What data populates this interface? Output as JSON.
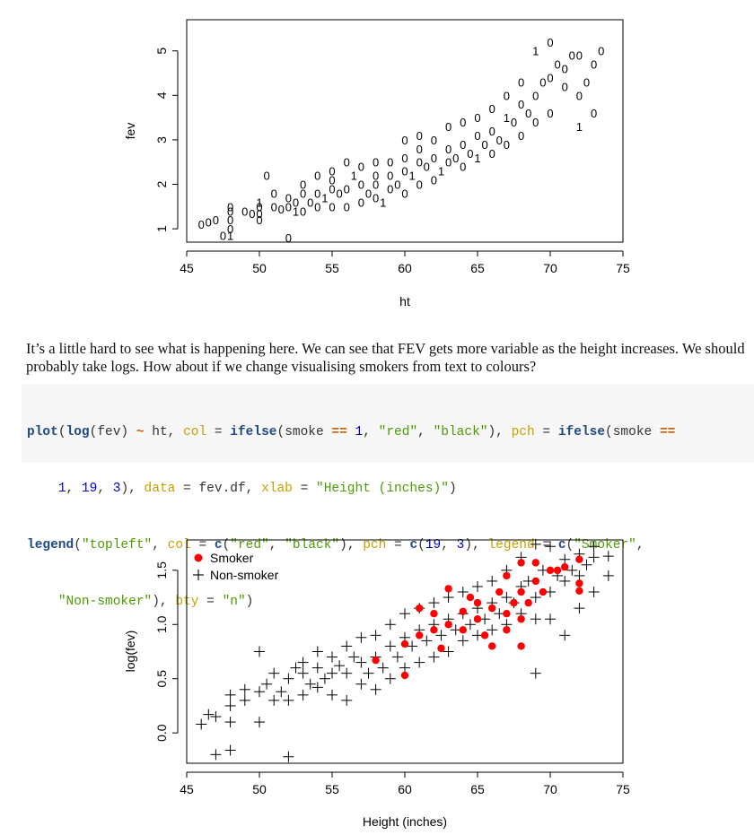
{
  "plot1": {
    "xlabel": "ht",
    "ylabel": "fev",
    "xticks": [
      "45",
      "50",
      "55",
      "60",
      "65",
      "70",
      "75"
    ],
    "yticks": [
      "1",
      "2",
      "3",
      "4",
      "5"
    ]
  },
  "prose": {
    "text": "It’s a little hard to see what is happening here. We can see that FEV gets more variable as the height increases. We should probably take logs. How about if we change visualising smokers from text to colours?"
  },
  "code": {
    "lines": [
      "plot(log(fev) ~ ht, col = ifelse(smoke == 1, \"red\", \"black\"), pch = ifelse(smoke ==",
      "    1, 19, 3), data = fev.df, xlab = \"Height (inches)\")",
      "legend(\"topleft\", col = c(\"red\", \"black\"), pch = c(19, 3), legend = c(\"Smoker\",",
      "    \"Non-smoker\"), bty = \"n\")"
    ]
  },
  "plot2": {
    "xlabel": "Height (inches)",
    "ylabel": "log(fev)",
    "xticks": [
      "45",
      "50",
      "55",
      "60",
      "65",
      "70",
      "75"
    ],
    "yticks": [
      "0.0",
      "0.5",
      "1.0",
      "1.5"
    ],
    "legend": [
      {
        "label": "Smoker",
        "color": "#ff0000",
        "marker": "filled-circle"
      },
      {
        "label": "Non-smoker",
        "color": "#000000",
        "marker": "plus"
      }
    ]
  },
  "chart_data": [
    {
      "type": "scatter",
      "xlabel": "ht",
      "ylabel": "fev",
      "xlim": [
        45,
        75
      ],
      "ylim": [
        0.7,
        5.7
      ],
      "grid": false,
      "marker": "text: 0 = non-smoker, 1 = smoker",
      "series": [
        {
          "points": [
            [
              46,
              1.1
            ],
            [
              46.5,
              1.15
            ],
            [
              47,
              1.2
            ],
            [
              47.5,
              0.85
            ],
            [
              48,
              0.85
            ],
            [
              48,
              1.0
            ],
            [
              48,
              1.2
            ],
            [
              48,
              1.4
            ],
            [
              48,
              1.5
            ],
            [
              49,
              1.4
            ],
            [
              49.5,
              1.35
            ],
            [
              50,
              1.35
            ],
            [
              50,
              1.5
            ],
            [
              50,
              1.6
            ],
            [
              50,
              1.2
            ],
            [
              50.5,
              2.2
            ],
            [
              51,
              1.5
            ],
            [
              51,
              1.8
            ],
            [
              51.5,
              1.45
            ],
            [
              52,
              0.8
            ],
            [
              52,
              1.5
            ],
            [
              52,
              1.7
            ],
            [
              52.5,
              1.4
            ],
            [
              52.5,
              1.6
            ],
            [
              53,
              1.4
            ],
            [
              53,
              1.8
            ],
            [
              53,
              2.0
            ],
            [
              53.5,
              1.6
            ],
            [
              54,
              1.5
            ],
            [
              54,
              1.8
            ],
            [
              54,
              2.2
            ],
            [
              54.5,
              1.7
            ],
            [
              55,
              1.5
            ],
            [
              55,
              1.9
            ],
            [
              55,
              2.1
            ],
            [
              55,
              2.3
            ],
            [
              55.5,
              1.8
            ],
            [
              56,
              1.5
            ],
            [
              56,
              1.9
            ],
            [
              56,
              2.5
            ],
            [
              56.5,
              2.2
            ],
            [
              57,
              1.6
            ],
            [
              57,
              2.0
            ],
            [
              57,
              2.4
            ],
            [
              57.5,
              1.8
            ],
            [
              58,
              1.7
            ],
            [
              58,
              2.0
            ],
            [
              58,
              2.2
            ],
            [
              58,
              2.5
            ],
            [
              58.5,
              1.6
            ],
            [
              59,
              1.9
            ],
            [
              59,
              2.2
            ],
            [
              59,
              2.5
            ],
            [
              59.5,
              2.0
            ],
            [
              60,
              1.8
            ],
            [
              60,
              2.3
            ],
            [
              60,
              2.6
            ],
            [
              60,
              3.0
            ],
            [
              60.5,
              2.2
            ],
            [
              61,
              2.0
            ],
            [
              61,
              2.5
            ],
            [
              61,
              2.8
            ],
            [
              61,
              3.1
            ],
            [
              61.5,
              2.4
            ],
            [
              62,
              2.1
            ],
            [
              62,
              2.6
            ],
            [
              62,
              3.0
            ],
            [
              62.5,
              2.3
            ],
            [
              63,
              2.5
            ],
            [
              63,
              2.8
            ],
            [
              63,
              3.3
            ],
            [
              63.5,
              2.6
            ],
            [
              64,
              2.4
            ],
            [
              64,
              2.9
            ],
            [
              64,
              3.4
            ],
            [
              64.5,
              2.7
            ],
            [
              65,
              2.6
            ],
            [
              65,
              3.1
            ],
            [
              65,
              3.5
            ],
            [
              65.5,
              2.9
            ],
            [
              66,
              2.7
            ],
            [
              66,
              3.2
            ],
            [
              66,
              3.7
            ],
            [
              66.5,
              3.0
            ],
            [
              67,
              2.9
            ],
            [
              67,
              3.5
            ],
            [
              67,
              4.0
            ],
            [
              67.5,
              3.4
            ],
            [
              68,
              3.1
            ],
            [
              68,
              3.8
            ],
            [
              68,
              4.3
            ],
            [
              68.5,
              3.6
            ],
            [
              69,
              3.4
            ],
            [
              69,
              4.0
            ],
            [
              69,
              5.0
            ],
            [
              69.5,
              4.3
            ],
            [
              70,
              3.6
            ],
            [
              70,
              4.4
            ],
            [
              70,
              5.2
            ],
            [
              70.5,
              4.7
            ],
            [
              71,
              4.2
            ],
            [
              71,
              4.6
            ],
            [
              71.5,
              4.9
            ],
            [
              72,
              3.3
            ],
            [
              72,
              4.0
            ],
            [
              72,
              4.9
            ],
            [
              72.5,
              4.3
            ],
            [
              73,
              3.6
            ],
            [
              73,
              4.7
            ],
            [
              73.5,
              5.0
            ]
          ]
        }
      ]
    },
    {
      "type": "scatter",
      "xlabel": "Height (inches)",
      "ylabel": "log(fev)",
      "xlim": [
        45,
        75
      ],
      "ylim": [
        -0.28,
        1.78
      ],
      "grid": false,
      "legend_position": "top-left",
      "series": [
        {
          "name": "Smoker",
          "color": "#ff0000",
          "marker": "filled-circle",
          "points": [
            [
              58,
              0.67
            ],
            [
              60,
              0.53
            ],
            [
              60,
              0.82
            ],
            [
              61,
              0.9
            ],
            [
              61,
              1.15
            ],
            [
              62,
              0.95
            ],
            [
              62,
              1.1
            ],
            [
              62.5,
              0.78
            ],
            [
              63,
              1.0
            ],
            [
              63,
              1.33
            ],
            [
              64,
              0.95
            ],
            [
              64,
              1.12
            ],
            [
              64.5,
              1.25
            ],
            [
              65,
              1.05
            ],
            [
              65,
              1.2
            ],
            [
              65.5,
              0.9
            ],
            [
              66,
              0.8
            ],
            [
              66,
              1.15
            ],
            [
              66.5,
              1.3
            ],
            [
              67,
              0.95
            ],
            [
              67,
              1.1
            ],
            [
              67,
              1.45
            ],
            [
              67.5,
              1.2
            ],
            [
              68,
              0.8
            ],
            [
              68,
              1.05
            ],
            [
              68,
              1.3
            ],
            [
              68,
              1.57
            ],
            [
              68.5,
              1.2
            ],
            [
              69,
              1.4
            ],
            [
              69,
              1.57
            ],
            [
              69.5,
              1.3
            ],
            [
              70,
              1.5
            ],
            [
              70.5,
              1.5
            ],
            [
              71,
              1.53
            ],
            [
              72,
              1.31
            ],
            [
              72,
              1.38
            ],
            [
              72,
              1.6
            ]
          ]
        },
        {
          "name": "Non-smoker",
          "color": "#000000",
          "marker": "plus",
          "points": [
            [
              46,
              0.08
            ],
            [
              46.5,
              0.17
            ],
            [
              47,
              -0.2
            ],
            [
              47,
              0.15
            ],
            [
              48,
              -0.16
            ],
            [
              48,
              0.1
            ],
            [
              48,
              0.25
            ],
            [
              48,
              0.35
            ],
            [
              49,
              0.3
            ],
            [
              49,
              0.4
            ],
            [
              50,
              0.1
            ],
            [
              50,
              0.38
            ],
            [
              50,
              0.75
            ],
            [
              50.5,
              0.45
            ],
            [
              51,
              0.3
            ],
            [
              51,
              0.55
            ],
            [
              51.5,
              0.38
            ],
            [
              52,
              -0.22
            ],
            [
              52,
              0.3
            ],
            [
              52,
              0.5
            ],
            [
              52.5,
              0.6
            ],
            [
              53,
              0.35
            ],
            [
              53,
              0.55
            ],
            [
              53,
              0.65
            ],
            [
              53.5,
              0.45
            ],
            [
              54,
              0.42
            ],
            [
              54,
              0.6
            ],
            [
              54,
              0.75
            ],
            [
              54.5,
              0.5
            ],
            [
              55,
              0.35
            ],
            [
              55,
              0.55
            ],
            [
              55,
              0.7
            ],
            [
              55.5,
              0.62
            ],
            [
              56,
              0.3
            ],
            [
              56,
              0.55
            ],
            [
              56,
              0.8
            ],
            [
              56.5,
              0.7
            ],
            [
              57,
              0.45
            ],
            [
              57,
              0.65
            ],
            [
              57,
              0.88
            ],
            [
              57.5,
              0.55
            ],
            [
              58,
              0.4
            ],
            [
              58,
              0.7
            ],
            [
              58,
              0.9
            ],
            [
              58.5,
              0.6
            ],
            [
              59,
              0.5
            ],
            [
              59,
              0.8
            ],
            [
              59,
              1.0
            ],
            [
              59.5,
              0.7
            ],
            [
              60,
              0.6
            ],
            [
              60,
              0.88
            ],
            [
              60,
              1.1
            ],
            [
              60.5,
              0.8
            ],
            [
              61,
              0.65
            ],
            [
              61,
              0.95
            ],
            [
              61,
              1.15
            ],
            [
              61.5,
              0.85
            ],
            [
              62,
              0.7
            ],
            [
              62,
              1.0
            ],
            [
              62,
              1.2
            ],
            [
              62.5,
              0.9
            ],
            [
              63,
              0.75
            ],
            [
              63,
              1.05
            ],
            [
              63,
              1.25
            ],
            [
              63.5,
              0.95
            ],
            [
              64,
              0.85
            ],
            [
              64,
              1.1
            ],
            [
              64,
              1.3
            ],
            [
              64.5,
              1.0
            ],
            [
              65,
              0.9
            ],
            [
              65,
              1.15
            ],
            [
              65,
              1.35
            ],
            [
              65.5,
              1.05
            ],
            [
              66,
              0.95
            ],
            [
              66,
              1.2
            ],
            [
              66,
              1.4
            ],
            [
              66.5,
              1.1
            ],
            [
              67,
              1.0
            ],
            [
              67,
              1.25
            ],
            [
              67,
              1.5
            ],
            [
              67.5,
              1.2
            ],
            [
              68,
              1.1
            ],
            [
              68,
              1.35
            ],
            [
              68,
              1.62
            ],
            [
              68.5,
              1.4
            ],
            [
              69,
              0.55
            ],
            [
              69,
              1.05
            ],
            [
              69,
              1.25
            ],
            [
              69,
              1.74
            ],
            [
              69.5,
              1.5
            ],
            [
              70,
              1.05
            ],
            [
              70,
              1.3
            ],
            [
              70,
              1.72
            ],
            [
              70.5,
              1.45
            ],
            [
              71,
              0.9
            ],
            [
              71,
              1.4
            ],
            [
              71,
              1.6
            ],
            [
              71.5,
              1.5
            ],
            [
              72,
              1.15
            ],
            [
              72,
              1.45
            ],
            [
              72,
              1.65
            ],
            [
              72.5,
              1.55
            ],
            [
              73,
              1.3
            ],
            [
              73,
              1.62
            ],
            [
              73,
              1.72
            ],
            [
              74,
              1.45
            ],
            [
              74,
              1.63
            ]
          ]
        }
      ]
    }
  ]
}
